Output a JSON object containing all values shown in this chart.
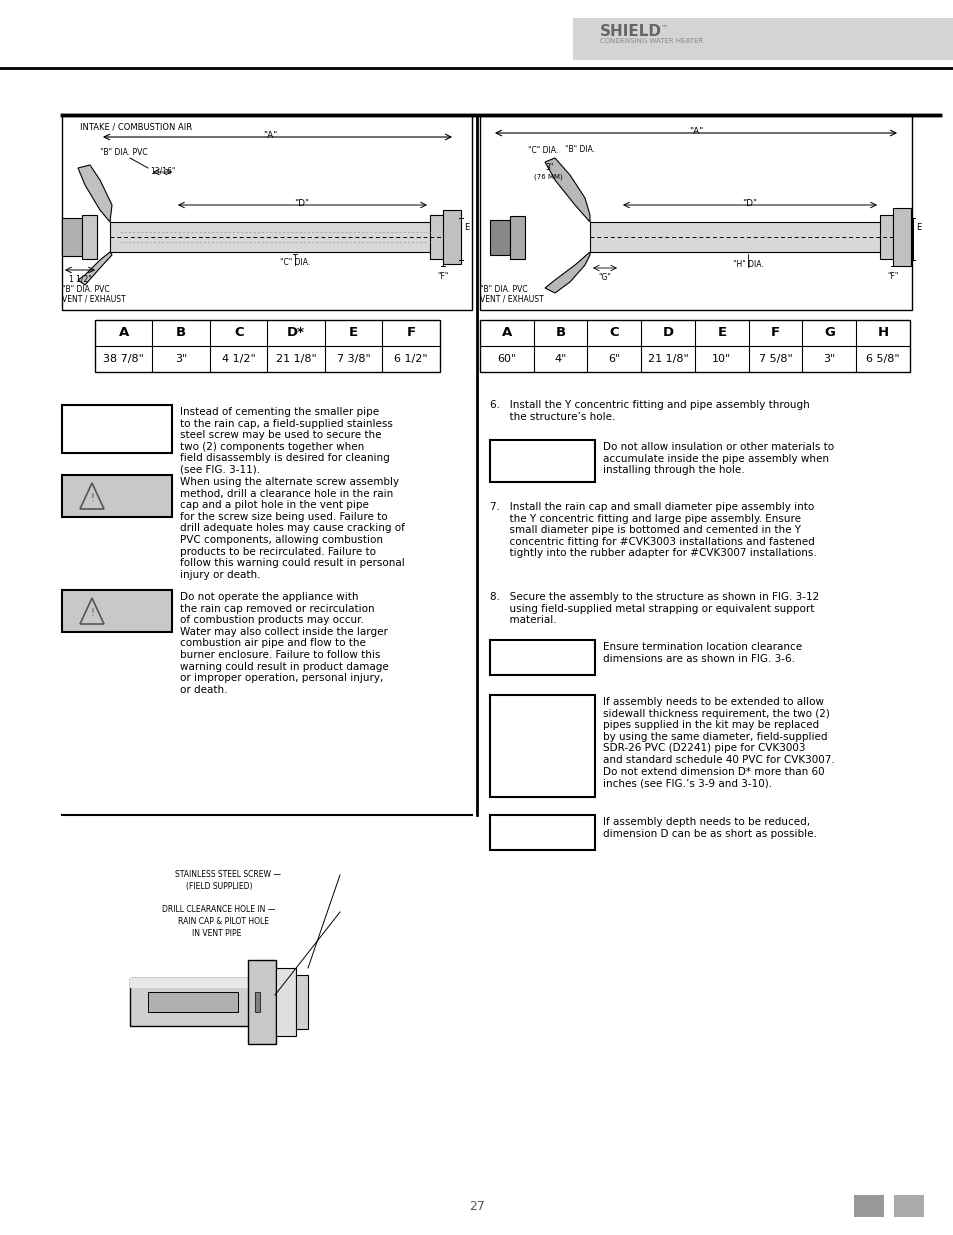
{
  "bg_color": "#ffffff",
  "page_width": 9.54,
  "page_height": 12.35,
  "header_logo_text": "SHIELD",
  "header_logo_subtext": "CONDENSING WATER HEATER",
  "left_table": {
    "headers": [
      "A",
      "B",
      "C",
      "D*",
      "E",
      "F"
    ],
    "values": [
      "38 7/8\"",
      "3\"",
      "4 1/2\"",
      "21 1/8\"",
      "7 3/8\"",
      "6 1/2\""
    ]
  },
  "right_table": {
    "headers": [
      "A",
      "B",
      "C",
      "D",
      "E",
      "F",
      "G",
      "H"
    ],
    "values": [
      "60\"",
      "4\"",
      "6\"",
      "21 1/8\"",
      "10\"",
      "7 5/8\"",
      "3\"",
      "6 5/8\""
    ]
  },
  "warning_box1_text": "Instead of cementing the smaller pipe\nto the rain cap, a field-supplied stainless\nsteel screw may be used to secure the\ntwo (2) components together when\nfield disassembly is desired for cleaning\n(see FIG. 3-11).",
  "warning_box2_text": "When using the alternate screw assembly\nmethod, drill a clearance hole in the rain\ncap and a pilot hole in the vent pipe\nfor the screw size being used. Failure to\ndrill adequate holes may cause cracking of\nPVC components, allowing combustion\nproducts to be recirculated. Failure to\nfollow this warning could result in personal\ninjury or death.",
  "warning_box3_text": "Do not operate the appliance with\nthe rain cap removed or recirculation\nof combustion products may occur.\nWater may also collect inside the larger\ncombustion air pipe and flow to the\nburner enclosure. Failure to follow this\nwarning could result in product damage\nor improper operation, personal injury,\nor death.",
  "right_step6_text": "6.   Install the Y concentric fitting and pipe assembly through\n      the structure’s hole.",
  "right_note1_text": "Do not allow insulation or other materials to\naccumulate inside the pipe assembly when\ninstalling through the hole.",
  "right_step7_text": "7.   Install the rain cap and small diameter pipe assembly into\n      the Y concentric fitting and large pipe assembly. Ensure\n      small diameter pipe is bottomed and cemented in the Y\n      concentric fitting for #CVK3003 installations and fastened\n      tightly into the rubber adapter for #CVK3007 installations.",
  "right_step8_text": "8.   Secure the assembly to the structure as shown in FIG. 3-12\n      using field-supplied metal strapping or equivalent support\n      material.",
  "right_note2_text": "Ensure termination location clearance\ndimensions are as shown in FIG. 3-6.",
  "right_note3_text": "If assembly needs to be extended to allow\nsidewall thickness requirement, the two (2)\npipes supplied in the kit may be replaced\nby using the same diameter, field-supplied\nSDR-26 PVC (D2241) pipe for CVK3003\nand standard schedule 40 PVC for CVK3007.\nDo not extend dimension D* more than 60\ninches (see FIG.’s 3-9 and 3-10).",
  "right_note4_text": "If assembly depth needs to be reduced,\ndimension D can be as short as possible.",
  "bottom_screw_label": "STAINLESS STEEL SCREW —\n(FIELD SUPPLIED)",
  "bottom_drill_label": "DRILL CLEARANCE HOLE IN —\nRAIN CAP & PILOT HOLE\nIN VENT PIPE"
}
